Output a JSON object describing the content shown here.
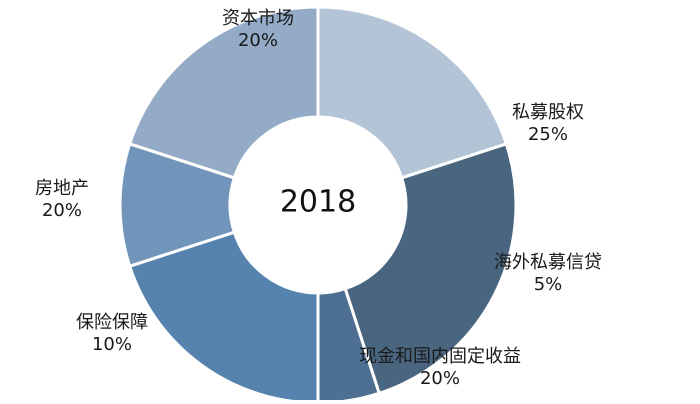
{
  "chart_data": {
    "type": "pie",
    "title": "",
    "center_text": "2018",
    "slices": [
      {
        "label": "私募股权",
        "value": 25,
        "value_label": "25%",
        "color": "#4a6580"
      },
      {
        "label": "海外私募信贷",
        "value": 5,
        "value_label": "5%",
        "color": "#4d6f92"
      },
      {
        "label": "现金和国内固定收益",
        "value": 20,
        "value_label": "20%",
        "color": "#5683ad"
      },
      {
        "label": "保险保障",
        "value": 10,
        "value_label": "10%",
        "color": "#7195ba"
      },
      {
        "label": "房地产",
        "value": 20,
        "value_label": "20%",
        "color": "#93abc6"
      },
      {
        "label": "资本市场",
        "value": 20,
        "value_label": "20%",
        "color": "#b3c4d6"
      }
    ],
    "legend": "none"
  }
}
